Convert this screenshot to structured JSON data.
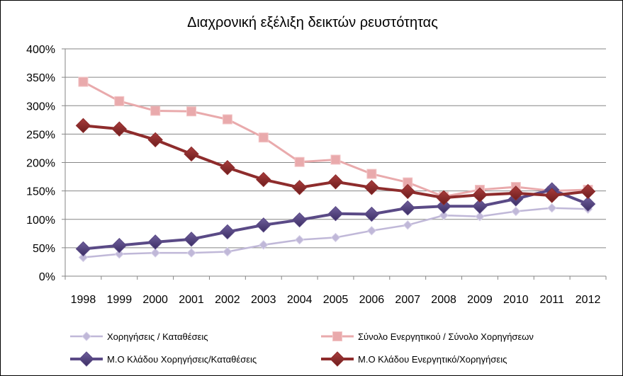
{
  "chart_data": {
    "type": "line",
    "title": "Διαχρονική εξέλιξη δεικτών ρευστότητας",
    "categories": [
      "1998",
      "1999",
      "2000",
      "2001",
      "2002",
      "2003",
      "2004",
      "2005",
      "2006",
      "2007",
      "2008",
      "2009",
      "2010",
      "2011",
      "2012"
    ],
    "y_ticks": [
      "0%",
      "50%",
      "100%",
      "150%",
      "200%",
      "250%",
      "300%",
      "350%",
      "400%"
    ],
    "ylim": [
      0,
      400
    ],
    "y_unit": "%",
    "grid": "horizontal",
    "legend_position": "bottom",
    "series": [
      {
        "name": "Χορηγήσεις / Καταθέσεις",
        "color": "#c0b8d8",
        "marker": "diamond-small",
        "values": [
          33,
          39,
          41,
          41,
          43,
          55,
          64,
          68,
          80,
          90,
          107,
          105,
          114,
          120,
          118
        ]
      },
      {
        "name": "Σύνολο Ενεργητικού / Σύνολο Χορηγήσεων",
        "color": "#e9aaac",
        "marker": "square",
        "values": [
          342,
          308,
          291,
          290,
          276,
          244,
          201,
          205,
          180,
          165,
          140,
          152,
          157,
          150,
          152
        ]
      },
      {
        "name": "Μ.Ο Κλάδου Χορηγήσεις/Καταθέσεις",
        "color": "#5a4a86",
        "marker": "diamond-large",
        "values": [
          48,
          54,
          60,
          65,
          78,
          90,
          99,
          110,
          109,
          120,
          123,
          123,
          136,
          152,
          127
        ]
      },
      {
        "name": "Μ.Ο Κλάδου Ενεργητικό/Χορηγήσεις",
        "color": "#8e2c2c",
        "marker": "diamond-large",
        "values": [
          265,
          259,
          240,
          215,
          191,
          170,
          156,
          166,
          156,
          149,
          138,
          143,
          146,
          142,
          149
        ]
      }
    ]
  }
}
